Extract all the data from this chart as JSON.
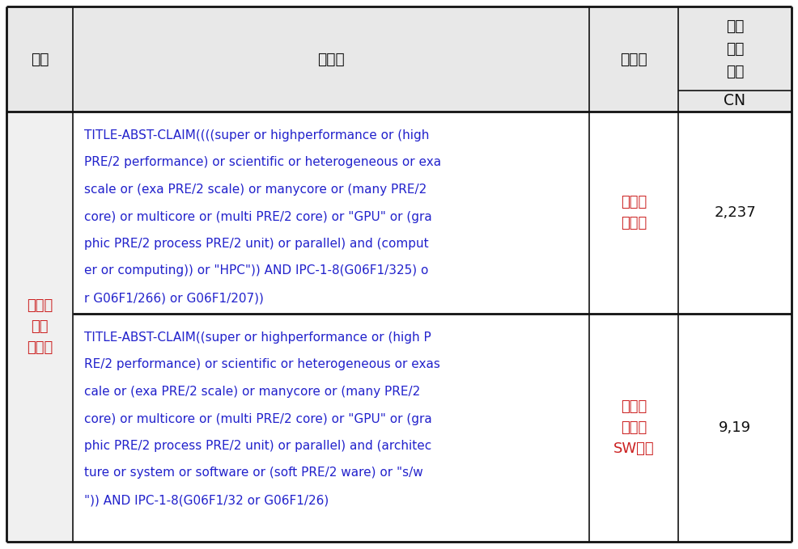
{
  "header_col1": "분류",
  "header_col2": "검색식",
  "header_col3": "중분류",
  "header_col4_top": "유효\n검색\n건수",
  "header_col4_bot": "CN",
  "col1_text": "저전력\n슈퍼\n컴퓨팅",
  "row1_col2_lines": [
    "TITLE-ABST-CLAIM((((super or highperformance or (high",
    "PRE/2 performance) or scientific or heterogeneous or exa",
    "scale or (exa PRE/2 scale) or manycore or (many PRE/2",
    "core) or multicore or (multi PRE/2 core) or \"GPU\" or (gra",
    "phic PRE/2 process PRE/2 unit) or parallel) and (comput",
    "er or computing)) or \"HPC\")) AND IPC-1-8(G06F1/325) o",
    "r G06F1/266) or G06F1/207))"
  ],
  "row1_col3": "저전력\n컴퓨팅",
  "row1_col4": "2,237",
  "row2_col2_lines": [
    "TITLE-ABST-CLAIM((super or highperformance or (high P",
    "RE/2 performance) or scientific or heterogeneous or exas",
    "cale or (exa PRE/2 scale) or manycore or (many PRE/2",
    "core) or multicore or (multi PRE/2 core) or \"GPU\" or (gra",
    "phic PRE/2 process PRE/2 unit) or parallel) and (architec",
    "ture or system or software or (soft PRE/2 ware) or \"s/w",
    "\")) AND IPC-1-8(G06F1/32 or G06F1/26)"
  ],
  "row2_col3": "저전력\n시스템\nSW기술",
  "row2_col4": "9,19",
  "bg_header": "#e8e8e8",
  "bg_white": "#ffffff",
  "border_color": "#000000",
  "text_color_blue": "#2222cc",
  "text_color_red": "#cc2222",
  "text_color_black": "#111111",
  "fig_width": 9.86,
  "fig_height": 6.79,
  "dpi": 100
}
